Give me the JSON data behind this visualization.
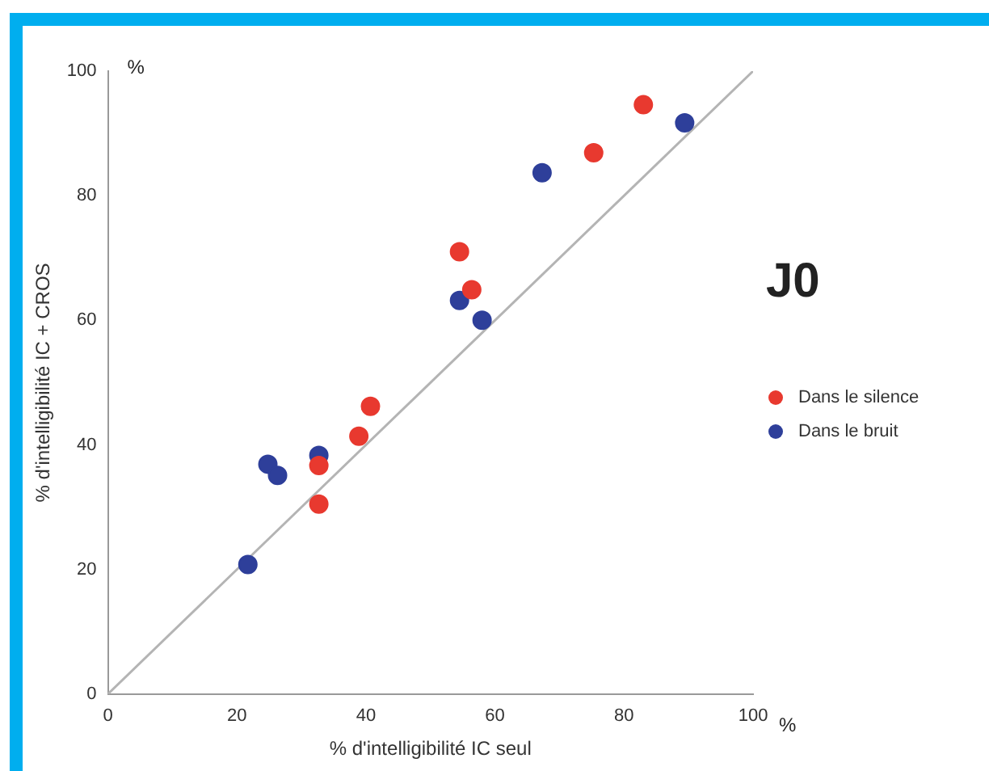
{
  "chart_data": {
    "type": "scatter",
    "title": "J0",
    "xlabel": "% d'intelligibilité IC seul",
    "ylabel": "% d'intelligibilité IC + CROS",
    "annotations": [
      "%",
      "%"
    ],
    "xlim": [
      0,
      100
    ],
    "ylim": [
      0,
      100
    ],
    "xticks": [
      0,
      20,
      40,
      60,
      80,
      100
    ],
    "yticks": [
      0,
      20,
      40,
      60,
      80,
      100
    ],
    "grid": false,
    "legend": "right",
    "marker": "circle",
    "series": [
      {
        "name": "Dans le silence",
        "color": "#e8392f",
        "x": [
          83.0,
          75.3,
          54.5,
          56.4,
          40.7,
          38.9,
          32.7,
          32.7
        ],
        "values": [
          94.6,
          86.9,
          71.0,
          64.9,
          46.2,
          41.4,
          36.7,
          30.5
        ]
      },
      {
        "name": "Dans le bruit",
        "color": "#2e3f9a",
        "x": [
          89.4,
          67.3,
          54.5,
          58.0,
          32.7,
          24.8,
          26.3,
          21.7
        ],
        "values": [
          91.7,
          83.7,
          63.2,
          60.0,
          38.3,
          36.9,
          35.1,
          20.8
        ]
      },
      {
        "type": "line",
        "marker": "none",
        "color": "#b4b4b4",
        "x": [
          0,
          100
        ],
        "values": [
          0,
          100
        ]
      }
    ]
  }
}
